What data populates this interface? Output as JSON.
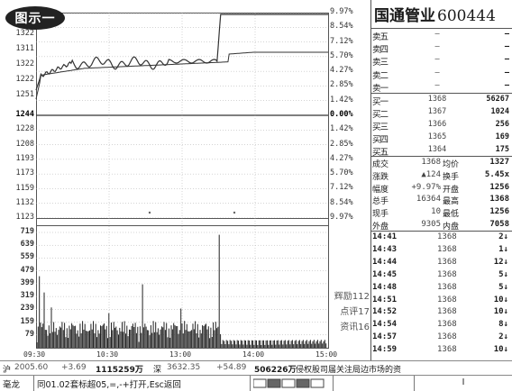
{
  "badge": {
    "label": "图示一"
  },
  "chart": {
    "price_axis": [
      "1322",
      "1311",
      "1322",
      "1222",
      "1251",
      "1244",
      "1228",
      "1208",
      "1193",
      "1173",
      "1159",
      "1132",
      "1123"
    ],
    "pct_axis": [
      "9.97%",
      "8.54%",
      "7.12%",
      "5.70%",
      "4.27%",
      "2.85%",
      "1.42%",
      "0.00%",
      "1.42%",
      "2.85%",
      "4.27%",
      "5.70%",
      "7.12%",
      "8.54%",
      "9.97%"
    ],
    "volume_axis": [
      "719",
      "639",
      "559",
      "479",
      "399",
      "319",
      "239",
      "159",
      "79"
    ],
    "time_axis": [
      "09:30",
      "10:30",
      "13:00",
      "14:00",
      "15:00"
    ],
    "info_links": [
      {
        "label": "辉励112"
      },
      {
        "label": "点评17"
      },
      {
        "label": "资讯16"
      }
    ]
  },
  "stock": {
    "name": "国通管业",
    "code": "600444"
  },
  "order_book": {
    "sells": [
      {
        "label": "卖五",
        "price": "—",
        "vol": "—"
      },
      {
        "label": "卖四",
        "price": "—",
        "vol": "—"
      },
      {
        "label": "卖三",
        "price": "—",
        "vol": "—"
      },
      {
        "label": "卖二",
        "price": "—",
        "vol": "—"
      },
      {
        "label": "卖一",
        "price": "—",
        "vol": "—"
      }
    ],
    "buys": [
      {
        "label": "买一",
        "price": "1368",
        "vol": "56267"
      },
      {
        "label": "买二",
        "price": "1367",
        "vol": "1024"
      },
      {
        "label": "买三",
        "price": "1366",
        "vol": "256"
      },
      {
        "label": "买四",
        "price": "1365",
        "vol": "169"
      },
      {
        "label": "买五",
        "price": "1364",
        "vol": "175"
      }
    ]
  },
  "stats": [
    {
      "l1": "成交",
      "v1": "1368",
      "l2": "均价",
      "v2": "1327"
    },
    {
      "l1": "涨跌",
      "v1": "▲124",
      "l2": "换手",
      "v2": "5.45x"
    },
    {
      "l1": "幅度",
      "v1": "+9.97%",
      "l2": "开盘",
      "v2": "1256"
    },
    {
      "l1": "总手",
      "v1": "16364",
      "l2": "最高",
      "v2": "1368"
    },
    {
      "l1": "现手",
      "v1": "10",
      "l2": "最低",
      "v2": "1256"
    },
    {
      "l1": "外盘",
      "v1": "9305",
      "l2": "内盘",
      "v2": "7058"
    }
  ],
  "ticks": [
    {
      "time": "14:41",
      "price": "1368",
      "vol": "2↓"
    },
    {
      "time": "14:43",
      "price": "1368",
      "vol": "1↓"
    },
    {
      "time": "14:44",
      "price": "1368",
      "vol": "12↓"
    },
    {
      "time": "14:45",
      "price": "1368",
      "vol": "5↓"
    },
    {
      "time": "14:48",
      "price": "1368",
      "vol": "5↓"
    },
    {
      "time": "14:51",
      "price": "1368",
      "vol": "10↓"
    },
    {
      "time": "14:52",
      "price": "1368",
      "vol": "10↓"
    },
    {
      "time": "14:54",
      "price": "1368",
      "vol": "8↓"
    },
    {
      "time": "14:57",
      "price": "1368",
      "vol": "2↓"
    },
    {
      "time": "14:59",
      "price": "1368",
      "vol": "10↓"
    }
  ],
  "status1": {
    "sh_label": "沪",
    "sh_index": "2005.60",
    "sh_chg": "+3.69",
    "sh_amount": "1115259万",
    "sz_label": "深",
    "sz_index": "3632.35",
    "sz_chg": "+54.89",
    "sz_amount": "506226万",
    "news": "侵权股司届关注局边市场的资"
  },
  "status2": {
    "cell1": "毫龙",
    "cell2": "同01.02套标超05,=,-+打开,Esc返回",
    "cell3": "",
    "cell4": "I"
  },
  "colors": {
    "price_line": "#333333",
    "avg_line": "#333333",
    "volume_bar": "#222222",
    "grid": "#aaaaaa"
  }
}
